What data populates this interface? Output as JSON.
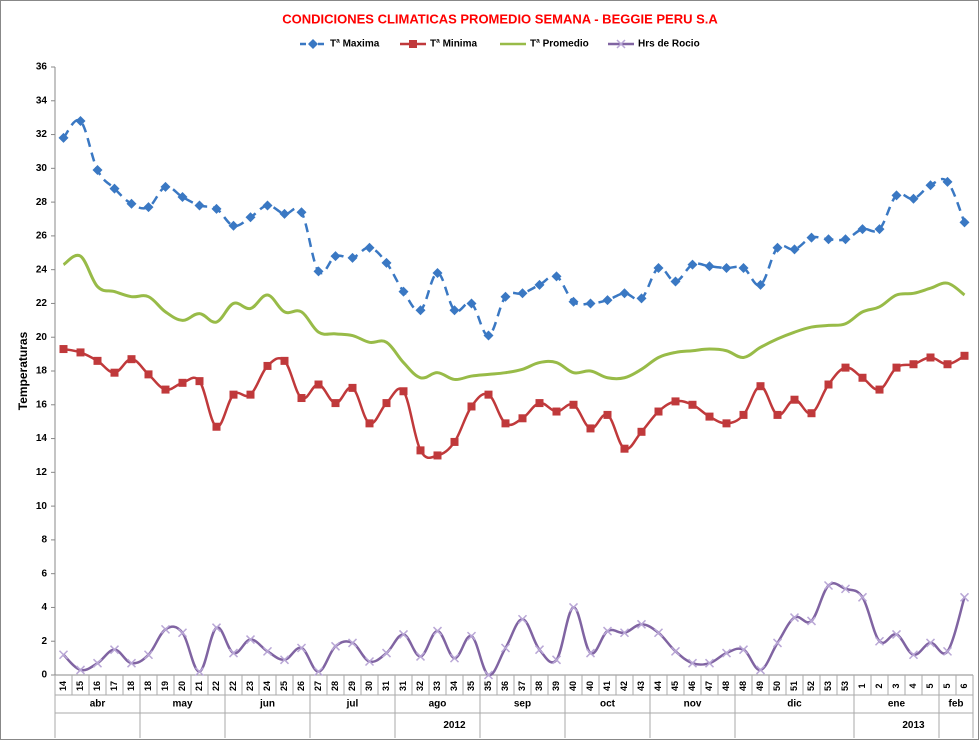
{
  "chart_data": {
    "type": "line",
    "title": "CONDICIONES CLIMATICAS PROMEDIO SEMANA -  BEGGIE  PERU S.A",
    "y_label": "Temperaturas",
    "categories": [
      "14",
      "15",
      "16",
      "17",
      "18",
      "18",
      "19",
      "20",
      "21",
      "22",
      "22",
      "23",
      "24",
      "25",
      "26",
      "27",
      "28",
      "29",
      "30",
      "31",
      "31",
      "32",
      "33",
      "34",
      "35",
      "35",
      "36",
      "37",
      "38",
      "39",
      "40",
      "40",
      "41",
      "42",
      "43",
      "44",
      "45",
      "46",
      "47",
      "48",
      "48",
      "49",
      "50",
      "51",
      "52",
      "53",
      "53",
      "1",
      "2",
      "3",
      "4",
      "5",
      "5",
      "6"
    ],
    "months": [
      "abr",
      null,
      null,
      null,
      null,
      "may",
      null,
      null,
      null,
      null,
      "jun",
      null,
      null,
      null,
      null,
      "jul",
      null,
      null,
      null,
      null,
      "ago",
      null,
      null,
      null,
      null,
      "sep",
      null,
      null,
      null,
      null,
      "oct",
      null,
      null,
      null,
      null,
      "nov",
      null,
      null,
      null,
      null,
      "dic",
      null,
      null,
      null,
      null,
      null,
      null,
      "ene",
      null,
      null,
      null,
      null,
      "feb",
      null
    ],
    "years": [
      "2012",
      null,
      null,
      null,
      null,
      null,
      null,
      null,
      null,
      null,
      null,
      null,
      null,
      null,
      null,
      null,
      null,
      null,
      null,
      null,
      null,
      null,
      null,
      null,
      null,
      null,
      null,
      null,
      null,
      null,
      null,
      null,
      null,
      null,
      null,
      null,
      null,
      null,
      null,
      null,
      null,
      null,
      null,
      null,
      null,
      null,
      null,
      "2013",
      null,
      null,
      null,
      null,
      null,
      null
    ],
    "ylim": [
      0,
      36
    ],
    "yticks": [
      0,
      2,
      4,
      6,
      8,
      10,
      12,
      14,
      16,
      18,
      20,
      22,
      24,
      26,
      28,
      30,
      32,
      34,
      36
    ],
    "grid": false,
    "series": [
      {
        "name": "Tª Maxima",
        "color": "#3a78c3",
        "marker": "diamond",
        "dashed": true,
        "values": [
          31.8,
          32.8,
          29.9,
          28.8,
          27.9,
          27.7,
          28.9,
          28.3,
          27.8,
          27.6,
          26.6,
          27.1,
          27.8,
          27.3,
          27.4,
          23.9,
          24.8,
          24.7,
          25.3,
          24.4,
          22.7,
          21.6,
          23.8,
          21.6,
          22.0,
          20.1,
          22.4,
          22.6,
          23.1,
          23.6,
          22.1,
          22.0,
          22.2,
          22.6,
          22.3,
          24.1,
          23.3,
          24.3,
          24.2,
          24.1,
          24.1,
          23.1,
          25.3,
          25.2,
          25.9,
          25.8,
          25.8,
          26.4,
          26.4,
          28.4,
          28.2,
          29.0,
          29.2,
          26.8
        ]
      },
      {
        "name": "Tª Minima",
        "color": "#c0393b",
        "marker": "square",
        "dashed": false,
        "values": [
          19.3,
          19.1,
          18.6,
          17.9,
          18.7,
          17.8,
          16.9,
          17.3,
          17.4,
          14.7,
          16.6,
          16.6,
          18.3,
          18.6,
          16.4,
          17.2,
          16.1,
          17.0,
          14.9,
          16.1,
          16.8,
          13.3,
          13.0,
          13.8,
          15.9,
          16.6,
          14.9,
          15.2,
          16.1,
          15.6,
          16.0,
          14.6,
          15.4,
          13.4,
          14.4,
          15.6,
          16.2,
          16.0,
          15.3,
          14.9,
          15.4,
          17.1,
          15.4,
          16.3,
          15.5,
          17.2,
          18.2,
          17.6,
          16.9,
          18.2,
          18.4,
          18.8,
          18.4,
          18.9
        ]
      },
      {
        "name": "Tª Promedio",
        "color": "#98bb48",
        "marker": "none",
        "dashed": false,
        "values": [
          24.3,
          24.8,
          23.0,
          22.7,
          22.4,
          22.4,
          21.5,
          21.0,
          21.4,
          20.9,
          22.0,
          21.7,
          22.5,
          21.5,
          21.5,
          20.3,
          20.2,
          20.1,
          19.7,
          19.7,
          18.5,
          17.6,
          17.9,
          17.5,
          17.7,
          17.8,
          17.9,
          18.1,
          18.5,
          18.5,
          17.9,
          18.0,
          17.6,
          17.6,
          18.1,
          18.8,
          19.1,
          19.2,
          19.3,
          19.2,
          18.8,
          19.4,
          19.9,
          20.3,
          20.6,
          20.7,
          20.8,
          21.5,
          21.8,
          22.5,
          22.6,
          22.9,
          23.2,
          22.5
        ]
      },
      {
        "name": "Hrs de Rocio",
        "color": "#8064a2",
        "marker": "x",
        "dashed": false,
        "values": [
          1.2,
          0.3,
          0.7,
          1.5,
          0.7,
          1.2,
          2.7,
          2.5,
          0.2,
          2.8,
          1.3,
          2.1,
          1.4,
          0.9,
          1.6,
          0.2,
          1.7,
          1.9,
          0.8,
          1.3,
          2.4,
          1.1,
          2.6,
          1.0,
          2.3,
          0,
          1.6,
          3.3,
          1.5,
          0.9,
          4.0,
          1.3,
          2.6,
          2.5,
          3.0,
          2.5,
          1.4,
          0.7,
          0.7,
          1.3,
          1.5,
          0.3,
          1.9,
          3.4,
          3.2,
          5.3,
          5.1,
          4.6,
          2.0,
          2.4,
          1.2,
          1.9,
          1.4,
          4.6
        ]
      }
    ]
  }
}
